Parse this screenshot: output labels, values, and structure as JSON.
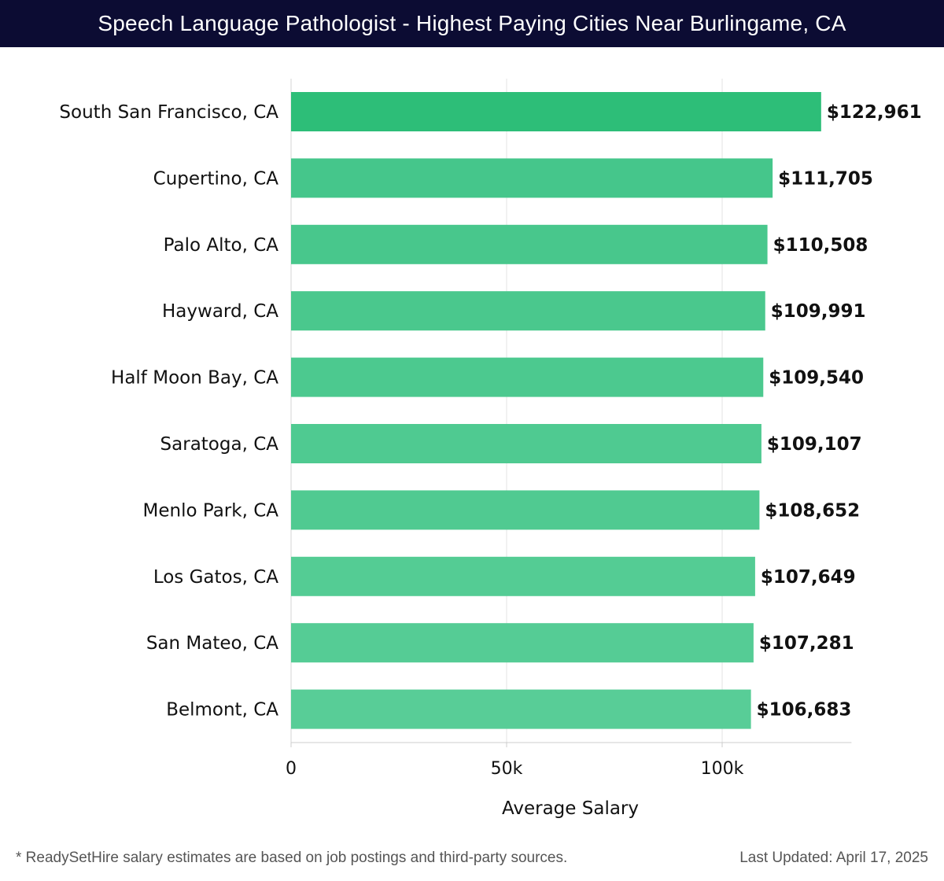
{
  "header": {
    "title": "Speech Language Pathologist - Highest Paying Cities Near Burlingame, CA"
  },
  "chart_data": {
    "type": "bar",
    "orientation": "horizontal",
    "title": "Speech Language Pathologist - Highest Paying Cities Near Burlingame, CA",
    "xlabel": "Average Salary",
    "ylabel": "",
    "xlim": [
      0,
      130000
    ],
    "xticks": [
      0,
      50000,
      100000
    ],
    "xtick_labels": [
      "0",
      "50k",
      "100k"
    ],
    "grid": true,
    "categories": [
      "South San Francisco, CA",
      "Cupertino, CA",
      "Palo Alto, CA",
      "Hayward, CA",
      "Half Moon Bay, CA",
      "Saratoga, CA",
      "Menlo Park, CA",
      "Los Gatos, CA",
      "San Mateo, CA",
      "Belmont, CA"
    ],
    "values": [
      122961,
      111705,
      110508,
      109991,
      109540,
      109107,
      108652,
      107649,
      107281,
      106683
    ],
    "value_labels": [
      "$122,961",
      "$111,705",
      "$110,508",
      "$109,991",
      "$109,540",
      "$109,107",
      "$108,652",
      "$107,649",
      "$107,281",
      "$106,683"
    ],
    "colors": {
      "highlight": "#2dbe78",
      "bars": [
        "#2dbe78",
        "#45c68b",
        "#48c78c",
        "#4ac88d",
        "#4cc98f",
        "#4fca91",
        "#50ca91",
        "#54cc94",
        "#55cc95",
        "#58cd97"
      ],
      "grid": "#e3e3e3",
      "axis": "#cccccc",
      "text": "#111111"
    }
  },
  "footer": {
    "note": "* ReadySetHire salary estimates are based on job postings and third-party sources.",
    "updated": "Last Updated: April 17, 2025"
  }
}
